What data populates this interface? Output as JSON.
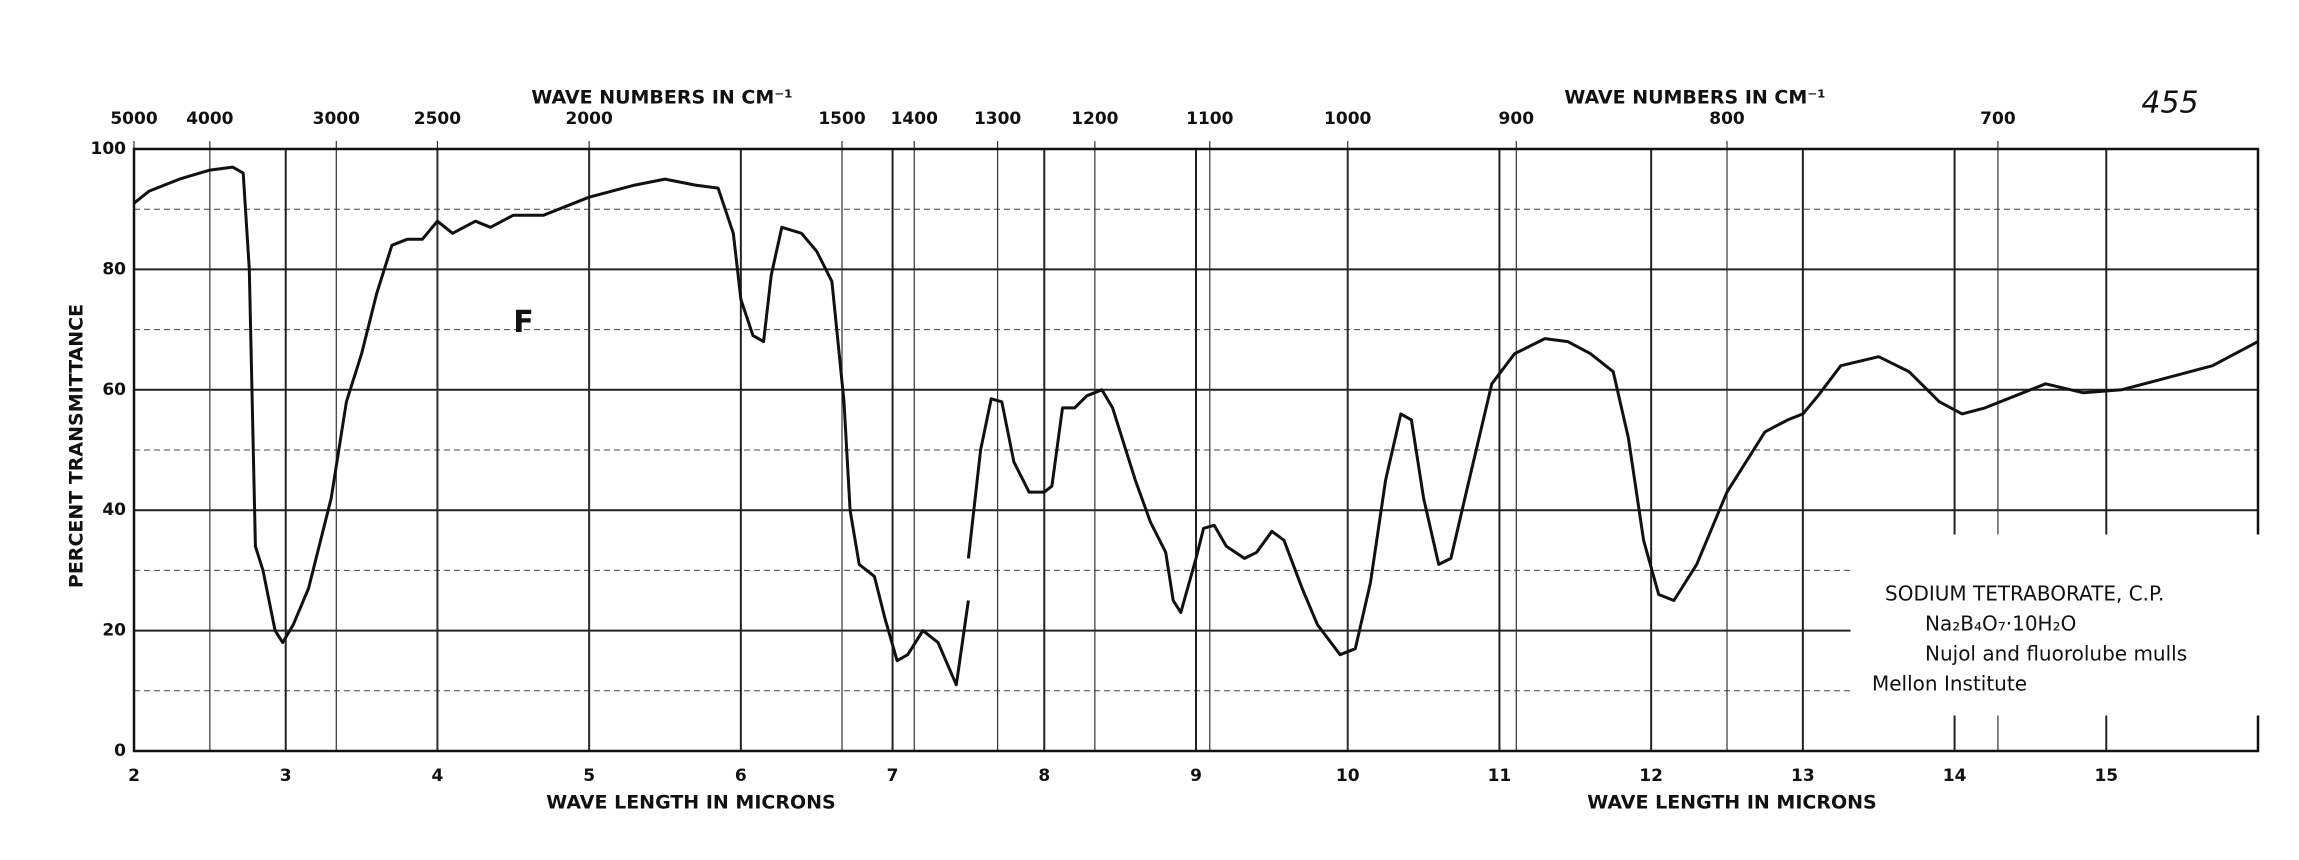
{
  "chart_data": {
    "type": "line",
    "ylabel": "PERCENT TRANSMITTANCE",
    "xlabel": "WAVE LENGTH IN MICRONS",
    "top_xlabel": "WAVE NUMBERS IN CM⁻¹",
    "xlim": [
      2,
      16
    ],
    "ylim": [
      0,
      100
    ],
    "xticks": [
      2,
      3,
      4,
      5,
      6,
      7,
      8,
      9,
      10,
      11,
      12,
      13,
      14,
      15
    ],
    "yticks": [
      0,
      20,
      40,
      60,
      80,
      100
    ],
    "y_minor_grid": [
      10,
      30,
      50,
      70,
      90
    ],
    "top_ticks": [
      5000,
      4000,
      3000,
      2500,
      2000,
      1500,
      1400,
      1300,
      1200,
      1100,
      1000,
      900,
      800,
      700
    ],
    "grid": true,
    "color": "#111111",
    "annotations": [
      {
        "text": "F",
        "x": 4.5,
        "y": 71
      }
    ],
    "page_number": "455",
    "legend_lines": [
      "SODIUM TETRABORATE, C.P.",
      "Na₂B₄O₇·10H₂O",
      "Nujol and fluorolube mulls",
      "Mellon Institute"
    ],
    "x": [
      2.0,
      2.1,
      2.3,
      2.5,
      2.65,
      2.72,
      2.76,
      2.8,
      2.85,
      2.93,
      2.98,
      3.05,
      3.15,
      3.3,
      3.4,
      3.5,
      3.6,
      3.7,
      3.8,
      3.9,
      4.0,
      4.1,
      4.25,
      4.35,
      4.5,
      4.7,
      5.0,
      5.3,
      5.5,
      5.7,
      5.85,
      5.95,
      6.0,
      6.08,
      6.15,
      6.2,
      6.27,
      6.4,
      6.5,
      6.6,
      6.68,
      6.72,
      6.78,
      6.88,
      6.95,
      7.03,
      7.1,
      7.2,
      7.3,
      7.42,
      7.5,
      7.5,
      7.5,
      7.58,
      7.65,
      7.72,
      7.8,
      7.9,
      8.0,
      8.05,
      8.12,
      8.2,
      8.28,
      8.38,
      8.45,
      8.6,
      8.7,
      8.8,
      8.85,
      8.9,
      9.0,
      9.05,
      9.12,
      9.2,
      9.32,
      9.4,
      9.5,
      9.58,
      9.7,
      9.8,
      9.95,
      10.05,
      10.15,
      10.25,
      10.35,
      10.42,
      10.5,
      10.6,
      10.68,
      10.8,
      10.95,
      11.1,
      11.3,
      11.45,
      11.6,
      11.75,
      11.85,
      11.95,
      12.05,
      12.15,
      12.3,
      12.5,
      12.75,
      12.9,
      13.0,
      13.1,
      13.25,
      13.5,
      13.7,
      13.9,
      14.05,
      14.2,
      14.4,
      14.6,
      14.85,
      15.1,
      15.4,
      15.7,
      16.0
    ],
    "values": [
      91,
      93,
      95,
      96.5,
      97,
      96,
      80,
      34,
      30,
      20,
      18,
      21,
      27,
      42,
      58,
      66,
      76,
      84,
      85,
      85,
      88,
      86,
      88,
      87,
      89,
      89,
      92,
      94,
      95,
      94,
      93.5,
      86,
      75,
      69,
      68,
      79,
      87,
      86,
      83,
      78,
      58,
      40,
      31,
      29,
      22,
      15,
      16,
      20,
      18,
      11,
      25,
      null,
      32,
      50,
      58.5,
      58,
      48,
      43,
      43,
      44,
      57,
      57,
      59,
      60,
      57,
      45,
      38,
      33,
      25,
      23,
      32,
      37,
      37.5,
      34,
      32,
      33,
      36.5,
      35,
      27,
      21,
      16,
      17,
      28,
      45,
      56,
      55,
      42,
      31,
      32,
      45,
      61,
      66,
      68.5,
      68,
      66,
      63,
      52,
      35,
      26,
      25,
      31,
      43,
      53,
      55,
      56,
      59,
      64,
      65.5,
      63,
      58,
      56,
      57,
      59,
      61,
      59.5,
      60,
      62,
      64,
      68
    ]
  }
}
